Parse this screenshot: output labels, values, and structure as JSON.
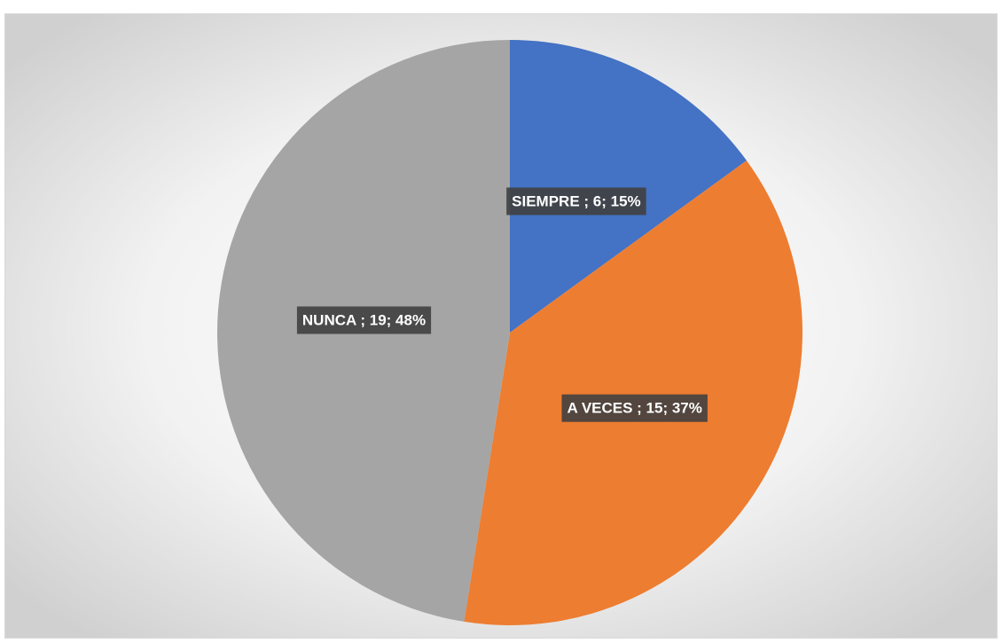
{
  "chart_data": {
    "type": "pie",
    "categories": [
      "SIEMPRE",
      "A VECES",
      "NUNCA"
    ],
    "values": [
      6,
      15,
      19
    ],
    "value_labels": [
      "SIEMPRE ; 6; 15%",
      "A VECES ; 15; 37%",
      "NUNCA ; 19; 48%"
    ],
    "colors": [
      "#4472c4",
      "#ed7d31",
      "#a5a5a5"
    ]
  }
}
